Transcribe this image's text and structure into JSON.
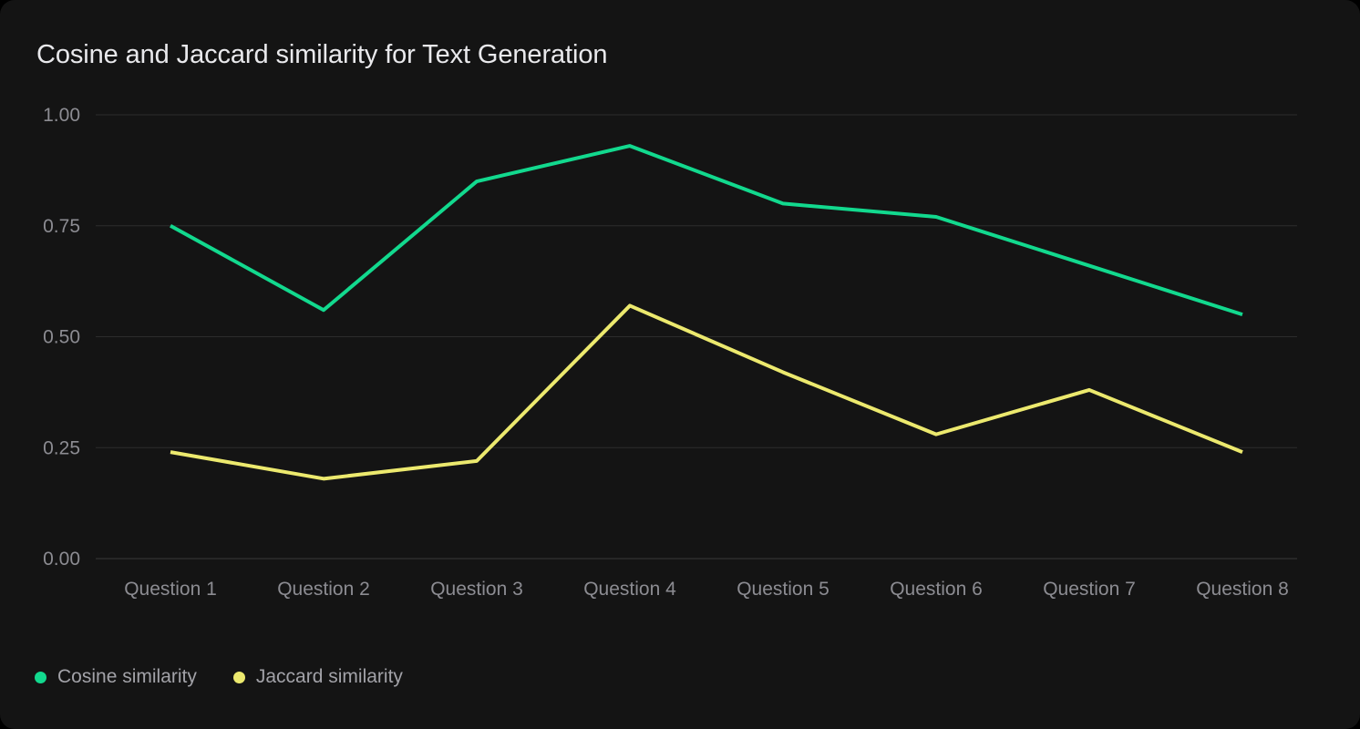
{
  "title": "Cosine and Jaccard similarity for Text Generation",
  "colors": {
    "card_background": "#141414",
    "page_background": "#000000",
    "title_text": "#e9e9ec",
    "tick_text": "#8c8c92",
    "legend_text": "#a2a2a8",
    "gridline": "#2c2c2c",
    "cosine_line": "#12d98e",
    "jaccard_line": "#ece96e"
  },
  "chart_data": {
    "type": "line",
    "title": "Cosine and Jaccard similarity for Text Generation",
    "categories": [
      "Question 1",
      "Question 2",
      "Question 3",
      "Question 4",
      "Question 5",
      "Question 6",
      "Question 7",
      "Question 8"
    ],
    "series": [
      {
        "name": "Cosine similarity",
        "color": "#12d98e",
        "values": [
          0.75,
          0.56,
          0.85,
          0.93,
          0.8,
          0.77,
          0.66,
          0.55
        ]
      },
      {
        "name": "Jaccard similarity",
        "color": "#ece96e",
        "values": [
          0.24,
          0.18,
          0.22,
          0.57,
          0.42,
          0.28,
          0.38,
          0.24
        ]
      }
    ],
    "xlabel": "",
    "ylabel": "",
    "ylim": [
      0.0,
      1.0
    ],
    "yticks": [
      0.0,
      0.25,
      0.5,
      0.75,
      1.0
    ],
    "ytick_labels": [
      "0.00",
      "0.25",
      "0.50",
      "0.75",
      "1.00"
    ],
    "grid": "horizontal",
    "legend_position": "bottom-left"
  }
}
